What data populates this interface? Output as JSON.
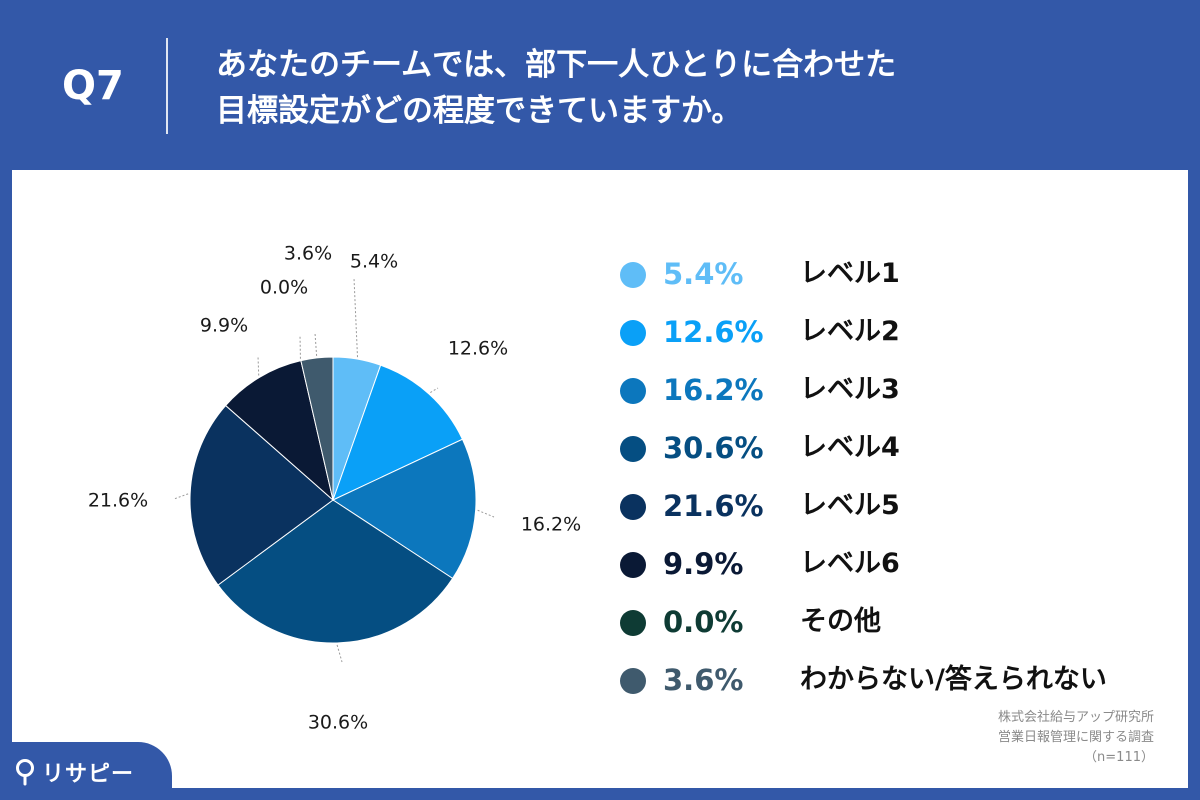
{
  "header": {
    "q_label": "Q7",
    "question_lines": [
      "あなたのチームでは、部下一人ひとりに合わせた",
      "目標設定がどの程度できていますか。"
    ]
  },
  "chart_data": {
    "type": "pie",
    "title": "",
    "slices": [
      {
        "name": "レベル1",
        "value": 5.4,
        "label": "5.4%",
        "color": "#5fbdf7"
      },
      {
        "name": "レベル2",
        "value": 12.6,
        "label": "12.6%",
        "color": "#0aa0f7"
      },
      {
        "name": "レベル3",
        "value": 16.2,
        "label": "16.2%",
        "color": "#0c77bd"
      },
      {
        "name": "レベル4",
        "value": 30.6,
        "label": "30.6%",
        "color": "#054e82"
      },
      {
        "name": "レベル5",
        "value": 21.6,
        "label": "21.6%",
        "color": "#0a325f"
      },
      {
        "name": "レベル6",
        "value": 9.9,
        "label": "9.9%",
        "color": "#0a1935"
      },
      {
        "name": "その他",
        "value": 0.0,
        "label": "0.0%",
        "color": "#0e3b34"
      },
      {
        "name": "わからない/答えられない",
        "value": 3.6,
        "label": "3.6%",
        "color": "#3f5a6d"
      }
    ],
    "legend_position": "right"
  },
  "source": {
    "lines": [
      "株式会社給与アップ研究所",
      "営業日報管理に関する調査",
      "（n=111）"
    ]
  },
  "brand": {
    "name": "リサピー",
    "icon": "magnifier-pin-icon"
  },
  "colors": {
    "header_bg": "#3358a8",
    "card_bg": "#ffffff"
  }
}
